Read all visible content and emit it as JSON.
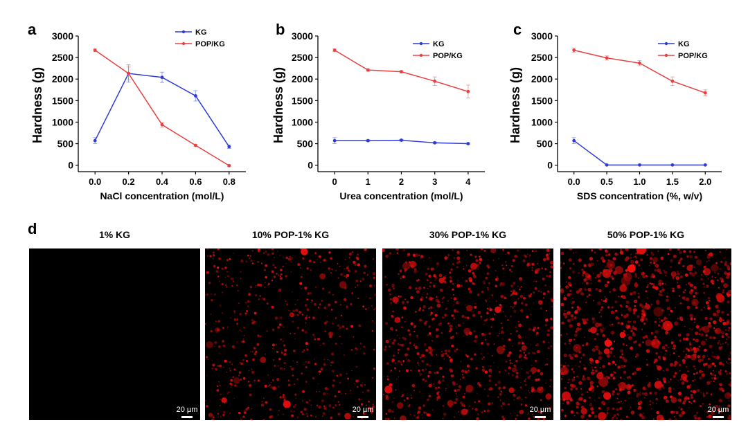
{
  "panel_letters": {
    "a": "a",
    "b": "b",
    "c": "c",
    "d": "d"
  },
  "chart_data": [
    {
      "type": "line",
      "panel": "a",
      "title": "",
      "xlabel": "NaCl concentration (mol/L)",
      "ylabel": "Hardness (g)",
      "x": [
        0.0,
        0.2,
        0.4,
        0.6,
        0.8
      ],
      "x_ticks": [
        "0.0",
        "0.2",
        "0.4",
        "0.6",
        "0.8"
      ],
      "xlim": [
        -0.1,
        0.9
      ],
      "ylim": [
        -150,
        3000
      ],
      "y_ticks": [
        0,
        500,
        1000,
        1500,
        2000,
        2500,
        3000
      ],
      "legend": "top-right",
      "series": [
        {
          "name": "KG",
          "color": "#2e3bd6",
          "values": [
            570,
            2130,
            2040,
            1610,
            430
          ],
          "errors": [
            70,
            200,
            120,
            120,
            40
          ]
        },
        {
          "name": "POP/KG",
          "color": "#e84040",
          "values": [
            2670,
            2130,
            940,
            460,
            -10
          ],
          "errors": [
            30,
            150,
            60,
            20,
            20
          ]
        }
      ]
    },
    {
      "type": "line",
      "panel": "b",
      "title": "",
      "xlabel": "Urea concentration (mol/L)",
      "ylabel": "Hardness (g)",
      "x": [
        0,
        1,
        2,
        3,
        4
      ],
      "x_ticks": [
        "0",
        "1",
        "2",
        "3",
        "4"
      ],
      "xlim": [
        -0.5,
        4.5
      ],
      "ylim": [
        -150,
        3000
      ],
      "y_ticks": [
        0,
        500,
        1000,
        1500,
        2000,
        2500,
        3000
      ],
      "legend": "top-right",
      "series": [
        {
          "name": "KG",
          "color": "#2e3bd6",
          "values": [
            570,
            570,
            580,
            520,
            500
          ],
          "errors": [
            70,
            20,
            20,
            20,
            20
          ]
        },
        {
          "name": "POP/KG",
          "color": "#e84040",
          "values": [
            2670,
            2210,
            2170,
            1950,
            1710
          ],
          "errors": [
            30,
            30,
            30,
            100,
            150
          ]
        }
      ]
    },
    {
      "type": "line",
      "panel": "c",
      "title": "",
      "xlabel": "SDS concentration (%, w/v)",
      "ylabel": "Hardness (g)",
      "x": [
        0.0,
        0.5,
        1.0,
        1.5,
        2.0
      ],
      "x_ticks": [
        "0.0",
        "0.5",
        "1.0",
        "1.5",
        "2.0"
      ],
      "xlim": [
        -0.25,
        2.25
      ],
      "ylim": [
        -150,
        3000
      ],
      "y_ticks": [
        0,
        500,
        1000,
        1500,
        2000,
        2500,
        3000
      ],
      "legend": "top-right",
      "series": [
        {
          "name": "KG",
          "color": "#2e3bd6",
          "values": [
            570,
            5,
            5,
            5,
            5
          ],
          "errors": [
            70,
            5,
            5,
            5,
            5
          ]
        },
        {
          "name": "POP/KG",
          "color": "#e84040",
          "values": [
            2670,
            2490,
            2370,
            1950,
            1680
          ],
          "errors": [
            50,
            50,
            60,
            100,
            70
          ]
        }
      ]
    }
  ],
  "micrographs": [
    {
      "title": "1% KG",
      "scale_label": "20 µm",
      "droplet_density": 0,
      "seed": 11
    },
    {
      "title": "10% POP-1% KG",
      "scale_label": "20 µm",
      "droplet_density": 0.55,
      "seed": 23
    },
    {
      "title": "30% POP-1% KG",
      "scale_label": "20 µm",
      "droplet_density": 0.75,
      "seed": 37
    },
    {
      "title": "50% POP-1% KG",
      "scale_label": "20 µm",
      "droplet_density": 1.0,
      "seed": 51
    }
  ]
}
